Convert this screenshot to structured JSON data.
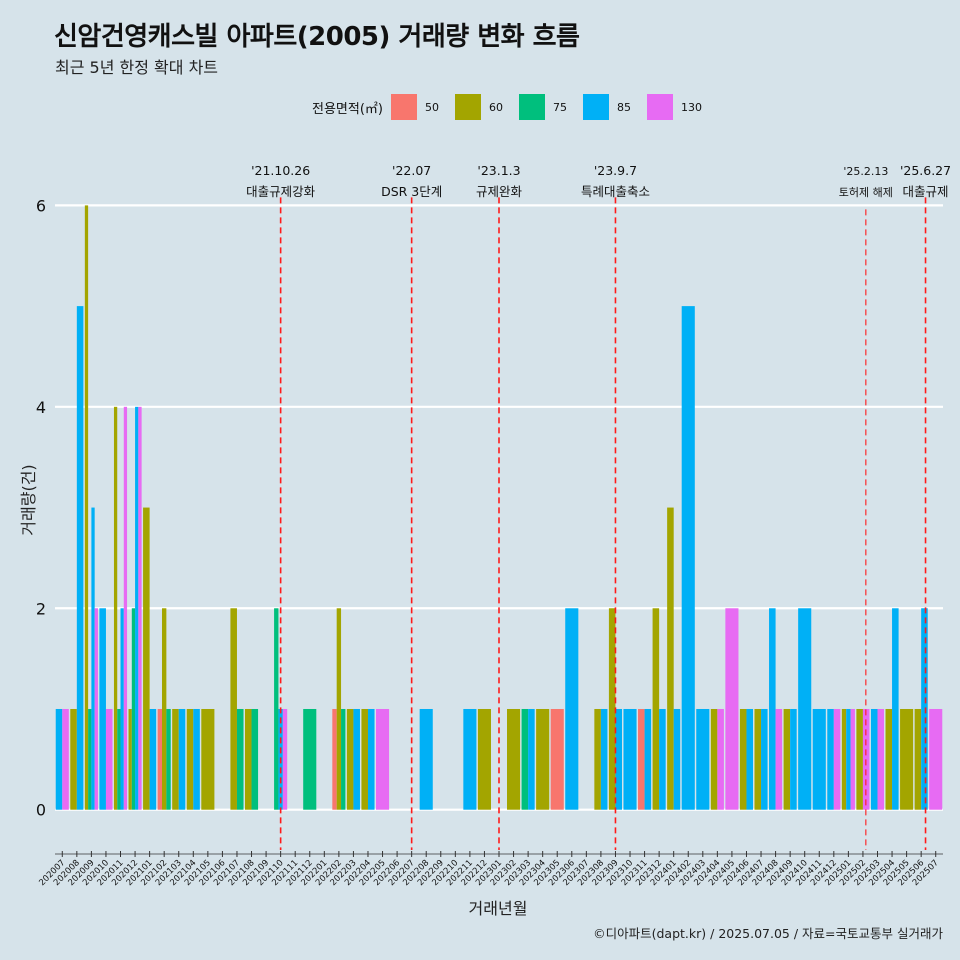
{
  "title": "신암건영캐스빌 아파트(2005) 거래량 변화 흐름",
  "subtitle": "최근 5년 한정 확대 차트",
  "caption": "©디아파트(dapt.kr) / 2025.07.05 / 자료=국토교통부 실거래가",
  "legend": {
    "title": "전용면적(㎡)",
    "items": [
      {
        "label": "50",
        "color": "#F8766D"
      },
      {
        "label": "60",
        "color": "#A3A500"
      },
      {
        "label": "75",
        "color": "#00BF7D"
      },
      {
        "label": "85",
        "color": "#00B0F6"
      },
      {
        "label": "130",
        "color": "#E76BF3"
      }
    ]
  },
  "chart_data": {
    "type": "bar",
    "xlabel": "거래년월",
    "ylabel": "거래량(건)",
    "ylim": [
      -0.4,
      6.55
    ],
    "yticks": [
      0,
      2,
      4,
      6
    ],
    "categories": [
      "202007",
      "202008",
      "202009",
      "202010",
      "202011",
      "202012",
      "202101",
      "202102",
      "202103",
      "202104",
      "202105",
      "202106",
      "202107",
      "202108",
      "202109",
      "202110",
      "202111",
      "202112",
      "202201",
      "202202",
      "202203",
      "202204",
      "202205",
      "202206",
      "202207",
      "202208",
      "202209",
      "202210",
      "202211",
      "202212",
      "202301",
      "202302",
      "202303",
      "202304",
      "202305",
      "202306",
      "202307",
      "202308",
      "202309",
      "202310",
      "202311",
      "202312",
      "202401",
      "202402",
      "202403",
      "202404",
      "202405",
      "202406",
      "202407",
      "202408",
      "202409",
      "202410",
      "202411",
      "202412",
      "202501",
      "202502",
      "202503",
      "202504",
      "202505",
      "202506",
      "202507"
    ],
    "series_order": [
      "50",
      "60",
      "75",
      "85",
      "130"
    ],
    "colors": {
      "50": "#F8766D",
      "60": "#A3A500",
      "75": "#00BF7D",
      "85": "#00B0F6",
      "130": "#E76BF3"
    },
    "bars": [
      {
        "month": "202007",
        "segments": {
          "85": 1,
          "130": 1
        }
      },
      {
        "month": "202008",
        "segments": {
          "60": 1,
          "85": 5
        }
      },
      {
        "month": "202009",
        "segments": {
          "60": 6,
          "75": 1,
          "85": 3,
          "130": 2
        }
      },
      {
        "month": "202010",
        "segments": {
          "85": 2,
          "130": 1
        }
      },
      {
        "month": "202011",
        "segments": {
          "60": 4,
          "75": 1,
          "85": 2,
          "130": 4
        }
      },
      {
        "month": "202012",
        "segments": {
          "60": 1,
          "75": 2,
          "85": 4,
          "130": 4
        }
      },
      {
        "month": "202101",
        "segments": {
          "60": 3,
          "85": 1
        }
      },
      {
        "month": "202102",
        "segments": {
          "50": 1,
          "60": 2,
          "75": 1
        }
      },
      {
        "month": "202103",
        "segments": {
          "60": 1,
          "85": 1
        }
      },
      {
        "month": "202104",
        "segments": {
          "60": 1,
          "85": 1
        }
      },
      {
        "month": "202105",
        "segments": {
          "60": 1
        }
      },
      {
        "month": "202107",
        "segments": {
          "60": 2,
          "75": 1
        }
      },
      {
        "month": "202108",
        "segments": {
          "60": 1,
          "75": 1
        }
      },
      {
        "month": "202110",
        "segments": {
          "75": 2,
          "85": 1,
          "130": 1
        }
      },
      {
        "month": "202112",
        "segments": {
          "75": 1
        }
      },
      {
        "month": "202202",
        "segments": {
          "50": 1,
          "60": 2,
          "75": 1
        }
      },
      {
        "month": "202203",
        "segments": {
          "60": 1,
          "85": 1
        }
      },
      {
        "month": "202204",
        "segments": {
          "60": 1,
          "85": 1
        }
      },
      {
        "month": "202205",
        "segments": {
          "130": 1
        }
      },
      {
        "month": "202208",
        "segments": {
          "85": 1
        }
      },
      {
        "month": "202211",
        "segments": {
          "85": 1
        }
      },
      {
        "month": "202212",
        "segments": {
          "60": 1
        }
      },
      {
        "month": "202302",
        "segments": {
          "60": 1
        }
      },
      {
        "month": "202303",
        "segments": {
          "75": 1,
          "85": 1
        }
      },
      {
        "month": "202304",
        "segments": {
          "60": 1
        }
      },
      {
        "month": "202305",
        "segments": {
          "50": 1
        }
      },
      {
        "month": "202306",
        "segments": {
          "85": 2
        }
      },
      {
        "month": "202308",
        "segments": {
          "60": 1,
          "85": 1
        }
      },
      {
        "month": "202309",
        "segments": {
          "60": 2,
          "85": 1
        }
      },
      {
        "month": "202310",
        "segments": {
          "85": 1
        }
      },
      {
        "month": "202311",
        "segments": {
          "50": 1,
          "85": 1
        }
      },
      {
        "month": "202312",
        "segments": {
          "60": 2,
          "85": 1
        }
      },
      {
        "month": "202401",
        "segments": {
          "60": 3,
          "85": 1
        }
      },
      {
        "month": "202402",
        "segments": {
          "85": 5
        }
      },
      {
        "month": "202403",
        "segments": {
          "85": 1
        }
      },
      {
        "month": "202404",
        "segments": {
          "60": 1,
          "130": 1
        }
      },
      {
        "month": "202405",
        "segments": {
          "130": 2
        }
      },
      {
        "month": "202406",
        "segments": {
          "60": 1,
          "85": 1
        }
      },
      {
        "month": "202407",
        "segments": {
          "60": 1,
          "85": 1
        }
      },
      {
        "month": "202408",
        "segments": {
          "85": 2,
          "130": 1
        }
      },
      {
        "month": "202409",
        "segments": {
          "60": 1,
          "85": 1
        }
      },
      {
        "month": "202410",
        "segments": {
          "85": 2
        }
      },
      {
        "month": "202411",
        "segments": {
          "85": 1
        }
      },
      {
        "month": "202412",
        "segments": {
          "85": 1,
          "130": 1
        }
      },
      {
        "month": "202501",
        "segments": {
          "60": 1,
          "85": 1,
          "130": 1
        }
      },
      {
        "month": "202502",
        "segments": {
          "60": 1,
          "130": 1
        }
      },
      {
        "month": "202503",
        "segments": {
          "85": 1,
          "130": 1
        }
      },
      {
        "month": "202504",
        "segments": {
          "60": 1,
          "85": 2
        }
      },
      {
        "month": "202505",
        "segments": {
          "60": 1
        }
      },
      {
        "month": "202506",
        "segments": {
          "60": 1,
          "85": 2
        }
      },
      {
        "month": "202507",
        "segments": {
          "130": 1
        }
      }
    ],
    "events": [
      {
        "month": "202110",
        "offset": 0.0,
        "date": "'21.10.26",
        "label": "대출규제강화",
        "bold": true
      },
      {
        "month": "202207",
        "offset": 0.0,
        "date": "'22.07",
        "label": "DSR 3단계",
        "bold": true
      },
      {
        "month": "202301",
        "offset": 0.0,
        "date": "'23.1.3",
        "label": "규제완화",
        "bold": true
      },
      {
        "month": "202309",
        "offset": 0.0,
        "date": "'23.9.7",
        "label": "특례대출축소",
        "bold": true
      },
      {
        "month": "202502",
        "offset": 0.2,
        "date": "'25.2.13",
        "label": "토허제 해제",
        "bold": false
      },
      {
        "month": "202506",
        "offset": 0.3,
        "date": "'25.6.27",
        "label": "대출규제",
        "bold": true
      }
    ]
  }
}
